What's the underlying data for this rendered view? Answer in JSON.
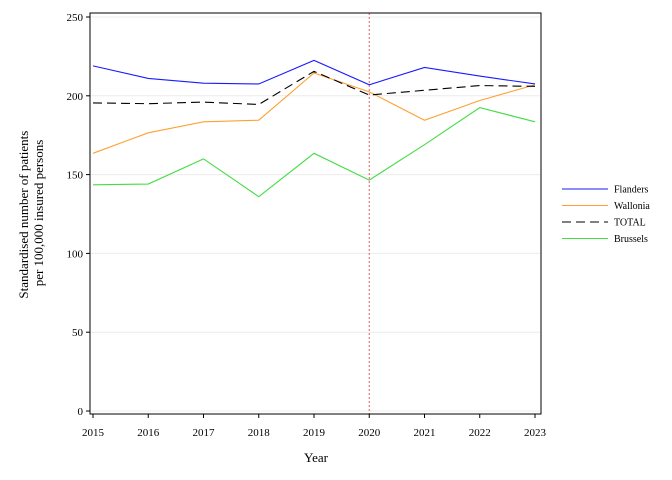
{
  "chart_data": {
    "type": "line",
    "x": [
      2015,
      2016,
      2017,
      2018,
      2019,
      2020,
      2021,
      2022,
      2023
    ],
    "xlabel": "Year",
    "ylabel": [
      "Standardised number of patients",
      "per 100,000 insured persons"
    ],
    "ylim": [
      0,
      250
    ],
    "yticks": [
      0,
      50,
      100,
      150,
      200,
      250
    ],
    "grid": "horizontal",
    "legend_position": "right",
    "reference_line": {
      "x": 2020,
      "color": "#e06060",
      "style": "dotted"
    },
    "series": [
      {
        "name": "Flanders",
        "color": "#1a1aff",
        "dash": "solid",
        "values": [
          219,
          211,
          208,
          207.5,
          222.5,
          207,
          218,
          212.5,
          207.5
        ]
      },
      {
        "name": "Wallonia",
        "color": "#ffa030",
        "dash": "solid",
        "values": [
          163.5,
          176.5,
          183.5,
          184.5,
          214.5,
          202.5,
          184.5,
          197,
          207
        ]
      },
      {
        "name": "TOTAL",
        "color": "#000000",
        "dash": "dashed",
        "values": [
          195.5,
          195,
          196,
          194.5,
          215.5,
          200.5,
          203.5,
          206.5,
          206
        ]
      },
      {
        "name": "Brussels",
        "color": "#44dd44",
        "dash": "solid",
        "values": [
          143.5,
          144,
          160,
          136,
          163.5,
          146.5,
          169,
          192.5,
          183.5
        ]
      }
    ]
  }
}
